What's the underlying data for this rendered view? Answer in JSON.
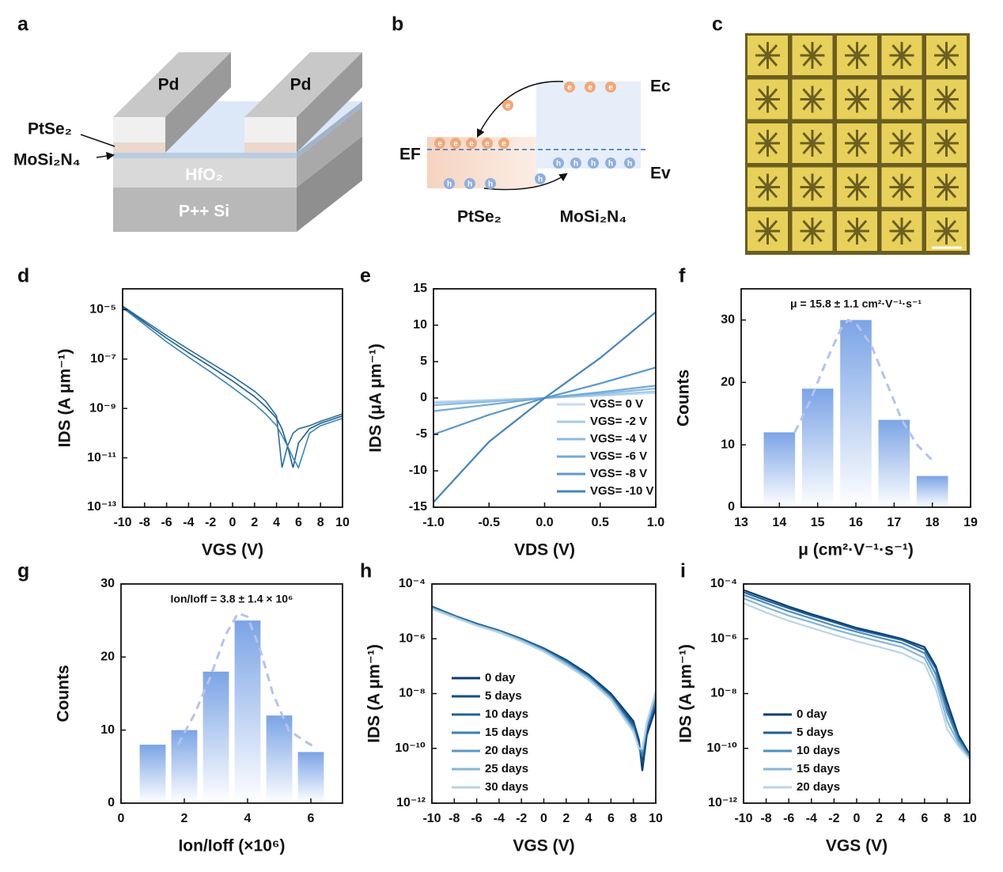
{
  "diagram_a": {
    "label": "a",
    "pd_left": "Pd",
    "pd_right": "Pd",
    "ptse2": "PtSe₂",
    "mosi2n4": "MoSi₂N₄",
    "hfo2": "HfO₂",
    "substrate": "P++ Si"
  },
  "diagram_b": {
    "label": "b",
    "ec": "Ec",
    "ev": "Ev",
    "ef": "EF",
    "left": "PtSe₂",
    "right": "MoSi₂N₄",
    "electron": "e",
    "hole": "h"
  },
  "image_c": {
    "label": "c"
  },
  "chart_data": [
    {
      "type": "line",
      "panel_label": "d",
      "x_label": "VGS (V)",
      "y_label": "IDS (A μm⁻¹)",
      "log_y": true,
      "xlim": [
        -10,
        10
      ],
      "xticks": [
        -10,
        -8,
        -6,
        -4,
        -2,
        0,
        2,
        4,
        6,
        8,
        10
      ],
      "ylim": [
        1e-13,
        7e-05
      ],
      "yticks": [
        {
          "value": 1e-13,
          "label": "10⁻¹³"
        },
        {
          "value": 1e-11,
          "label": "10⁻¹¹"
        },
        {
          "value": 1e-09,
          "label": "10⁻⁹"
        },
        {
          "value": 1e-07,
          "label": "10⁻⁷"
        },
        {
          "value": 1e-05,
          "label": "10⁻⁵"
        }
      ],
      "x": [
        -10,
        -8,
        -6,
        -4,
        -2,
        0,
        2,
        3,
        4,
        4.5,
        5,
        5.5,
        6,
        7,
        8,
        10
      ],
      "series": [
        {
          "color": "#2a6fa0",
          "values": [
            1.4e-05,
            3.5e-06,
            9e-07,
            2.5e-07,
            7e-08,
            2e-08,
            5e-09,
            2e-09,
            5e-10,
            4e-12,
            3e-11,
            1e-10,
            1.5e-10,
            2e-10,
            3e-10,
            6e-10
          ]
        },
        {
          "color": "#1e5f8f",
          "values": [
            1.3e-05,
            3e-06,
            7e-07,
            1.8e-07,
            5e-08,
            1.3e-08,
            3e-09,
            1.2e-09,
            4e-10,
            1.5e-10,
            3e-11,
            4e-12,
            4e-11,
            1.5e-10,
            2.5e-10,
            5e-10
          ]
        },
        {
          "color": "#3d85b8",
          "values": [
            1.2e-05,
            2.5e-06,
            5e-07,
            1.2e-07,
            3e-08,
            7e-09,
            1.5e-09,
            6e-10,
            2e-10,
            8e-11,
            3e-11,
            1e-11,
            4e-12,
            1e-10,
            2e-10,
            4e-10
          ]
        }
      ]
    },
    {
      "type": "line",
      "panel_label": "e",
      "x_label": "VDS (V)",
      "y_label": "IDS (μA μm⁻¹)",
      "log_y": false,
      "xlim": [
        -1,
        1
      ],
      "xticks": [
        {
          "value": -1,
          "label": "-1.0"
        },
        -0.5,
        {
          "value": 0,
          "label": "0.0"
        },
        0.5,
        {
          "value": 1,
          "label": "1.0"
        }
      ],
      "ylim": [
        -15,
        15
      ],
      "yticks": [
        -15,
        -10,
        -5,
        0,
        5,
        10,
        15
      ],
      "legend": "lower right",
      "x": [
        -1,
        -0.5,
        0,
        0.5,
        1
      ],
      "series": [
        {
          "name": "VGS= 0 V",
          "color": "#c4ddf0",
          "values": [
            -0.5,
            -0.25,
            0,
            0.3,
            0.7
          ]
        },
        {
          "name": "VGS= -2 V",
          "color": "#a6cbe8",
          "values": [
            -0.7,
            -0.35,
            0,
            0.4,
            0.9
          ]
        },
        {
          "name": "VGS= -4 V",
          "color": "#8cbbe0",
          "values": [
            -1,
            -0.5,
            0,
            0.6,
            1.3
          ]
        },
        {
          "name": "VGS= -6 V",
          "color": "#74abd6",
          "values": [
            -1.8,
            -0.9,
            0,
            0.8,
            1.7
          ]
        },
        {
          "name": "VGS= -8 V",
          "color": "#5a9acb",
          "values": [
            -5,
            -2.3,
            0,
            2,
            4.2
          ]
        },
        {
          "name": "VGS= -10 V",
          "color": "#4585bb",
          "values": [
            -14.3,
            -6,
            0,
            5.5,
            11.8
          ]
        }
      ]
    },
    {
      "type": "bar",
      "panel_label": "f",
      "x_label": "μ (cm²·V⁻¹·s⁻¹)",
      "y_label": "Counts",
      "annotation": "μ = 15.8 ± 1.1 cm²·V⁻¹·s⁻¹",
      "xlim": [
        13,
        19
      ],
      "xticks": [
        13,
        14,
        15,
        16,
        17,
        18,
        19
      ],
      "ylim": [
        0,
        35
      ],
      "yticks": [
        0,
        10,
        20,
        30
      ],
      "x": [
        14,
        15,
        16,
        17,
        18
      ],
      "values": [
        12,
        19,
        30,
        14,
        5
      ],
      "color": "#7ba4e6",
      "fit": {
        "color": "#b5c2f0",
        "x": [
          14.4,
          14.8,
          15.2,
          15.6,
          15.8,
          16.0,
          16.4,
          16.8,
          17.2,
          17.6,
          18.0
        ],
        "values": [
          12,
          17,
          23,
          28.5,
          30,
          29.5,
          26,
          20,
          14,
          10,
          7.5
        ]
      }
    },
    {
      "type": "bar",
      "panel_label": "g",
      "x_label": "Ion/Ioff (×10⁶)",
      "y_label": "Counts",
      "annotation": "Ion/Ioff = 3.8 ± 1.4 × 10⁶",
      "xlim": [
        0,
        7
      ],
      "xticks": [
        0,
        2,
        4,
        6
      ],
      "ylim": [
        0,
        30
      ],
      "yticks": [
        0,
        10,
        20,
        30
      ],
      "x": [
        1,
        2,
        3,
        4,
        5,
        6
      ],
      "values": [
        8,
        10,
        18,
        25,
        12,
        7
      ],
      "color": "#7ba4e6",
      "fit": {
        "color": "#b5c2f0",
        "x": [
          1.8,
          2.3,
          2.8,
          3.3,
          3.7,
          4.0,
          4.4,
          4.8,
          5.3,
          5.8,
          6.2
        ],
        "values": [
          8,
          12,
          17,
          23,
          26,
          25.5,
          21,
          15,
          10,
          8.5,
          7.5
        ]
      }
    },
    {
      "type": "line",
      "panel_label": "h",
      "x_label": "VGS (V)",
      "y_label": "IDS (A μm⁻¹)",
      "log_y": true,
      "xlim": [
        -10,
        10
      ],
      "xticks": [
        -10,
        -8,
        -6,
        -4,
        -2,
        0,
        2,
        4,
        6,
        8,
        10
      ],
      "ylim": [
        1e-12,
        0.0001
      ],
      "yticks": [
        {
          "value": 1e-12,
          "label": "10⁻¹²"
        },
        {
          "value": 1e-10,
          "label": "10⁻¹⁰"
        },
        {
          "value": 1e-08,
          "label": "10⁻⁸"
        },
        {
          "value": 1e-06,
          "label": "10⁻⁶"
        },
        {
          "value": 0.0001,
          "label": "10⁻⁴"
        }
      ],
      "legend": "lower left",
      "x": [
        -10,
        -8,
        -6,
        -4,
        -2,
        0,
        2,
        4,
        6,
        8,
        8.5,
        8.8,
        9.2,
        10
      ],
      "series": [
        {
          "name": "0 day",
          "color": "#0b3d73",
          "values": [
            1.5e-05,
            7e-06,
            3.5e-06,
            2e-06,
            1e-06,
            4.5e-07,
            1.7e-07,
            5e-08,
            1e-08,
            1e-09,
            2e-10,
            1.5e-11,
            3e-10,
            3e-09
          ]
        },
        {
          "name": "5 days",
          "color": "#124f8a",
          "values": [
            1.5e-05,
            7e-06,
            3.6e-06,
            2e-06,
            1e-06,
            4.3e-07,
            1.6e-07,
            4.5e-08,
            9e-09,
            8e-10,
            1.5e-10,
            3e-11,
            4e-10,
            4e-09
          ]
        },
        {
          "name": "10 days",
          "color": "#1f6399",
          "values": [
            1.4e-05,
            6.8e-06,
            3.4e-06,
            1.9e-06,
            9.5e-07,
            4.2e-07,
            1.5e-07,
            4.2e-08,
            8e-09,
            7e-10,
            1.2e-10,
            5e-11,
            5e-10,
            5e-09
          ]
        },
        {
          "name": "15 days",
          "color": "#3b7fae",
          "values": [
            1.4e-05,
            6.5e-06,
            3.3e-06,
            1.9e-06,
            9e-07,
            4e-07,
            1.4e-07,
            4e-08,
            7.5e-09,
            6e-10,
            1e-10,
            6e-11,
            6e-10,
            6e-09
          ]
        },
        {
          "name": "20 days",
          "color": "#5a9ac2",
          "values": [
            1.3e-05,
            6.5e-06,
            3.2e-06,
            1.8e-06,
            9e-07,
            3.8e-07,
            1.3e-07,
            3.8e-08,
            7e-09,
            5e-10,
            1e-10,
            8e-11,
            7e-10,
            8e-09
          ]
        },
        {
          "name": "25 days",
          "color": "#85b6d6",
          "values": [
            1.3e-05,
            6.2e-06,
            3.1e-06,
            1.8e-06,
            8.5e-07,
            3.6e-07,
            1.2e-07,
            3.5e-08,
            6.5e-09,
            4.5e-10,
            1e-10,
            9e-11,
            8e-10,
            1e-08
          ]
        },
        {
          "name": "30 days",
          "color": "#b5d2e8",
          "values": [
            1.2e-05,
            6e-06,
            3e-06,
            1.7e-06,
            8e-07,
            3.4e-07,
            1.1e-07,
            3.2e-08,
            6e-09,
            4e-10,
            1e-10,
            1e-10,
            9e-10,
            1.2e-08
          ]
        }
      ]
    },
    {
      "type": "line",
      "panel_label": "i",
      "x_label": "VGS (V)",
      "y_label": "IDS (A μm⁻¹)",
      "log_y": true,
      "xlim": [
        -10,
        10
      ],
      "xticks": [
        -10,
        -8,
        -6,
        -4,
        -2,
        0,
        2,
        4,
        6,
        8,
        10
      ],
      "ylim": [
        1e-12,
        0.0001
      ],
      "yticks": [
        {
          "value": 1e-12,
          "label": "10⁻¹²"
        },
        {
          "value": 1e-10,
          "label": "10⁻¹⁰"
        },
        {
          "value": 1e-08,
          "label": "10⁻⁸"
        },
        {
          "value": 1e-06,
          "label": "10⁻⁶"
        },
        {
          "value": 0.0001,
          "label": "10⁻⁴"
        }
      ],
      "legend": "lower left",
      "x": [
        -10,
        -8,
        -6,
        -4,
        -2,
        0,
        2,
        4,
        6,
        7,
        8,
        9,
        10
      ],
      "series": [
        {
          "name": "0 day",
          "color": "#0b3d73",
          "values": [
            6e-05,
            3e-05,
            1.5e-05,
            8e-06,
            4.5e-06,
            2.5e-06,
            1.6e-06,
            1e-06,
            5e-07,
            1e-07,
            5e-09,
            3e-10,
            6e-11
          ]
        },
        {
          "name": "5 days",
          "color": "#1f5f96",
          "values": [
            5e-05,
            2.5e-05,
            1.3e-05,
            7e-06,
            4e-06,
            2.2e-06,
            1.4e-06,
            9e-07,
            4e-07,
            8e-08,
            3e-09,
            2.5e-10,
            5e-11
          ]
        },
        {
          "name": "10 days",
          "color": "#4d8fbf",
          "values": [
            4e-05,
            2e-05,
            1e-05,
            5.5e-06,
            3e-06,
            1.8e-06,
            1.1e-06,
            7e-07,
            3e-07,
            5e-08,
            2e-09,
            2e-10,
            5e-11
          ]
        },
        {
          "name": "15 days",
          "color": "#86b6d8",
          "values": [
            3e-05,
            1.4e-05,
            7e-06,
            4e-06,
            2.2e-06,
            1.3e-06,
            8e-07,
            5e-07,
            2e-07,
            3e-08,
            1e-09,
            1.5e-10,
            4e-11
          ]
        },
        {
          "name": "20 days",
          "color": "#bad5ea",
          "values": [
            2e-05,
            9e-06,
            4.5e-06,
            2.5e-06,
            1.4e-06,
            8e-07,
            5e-07,
            3e-07,
            1.2e-07,
            1.5e-08,
            5e-10,
            1.2e-10,
            4e-11
          ]
        }
      ]
    }
  ]
}
